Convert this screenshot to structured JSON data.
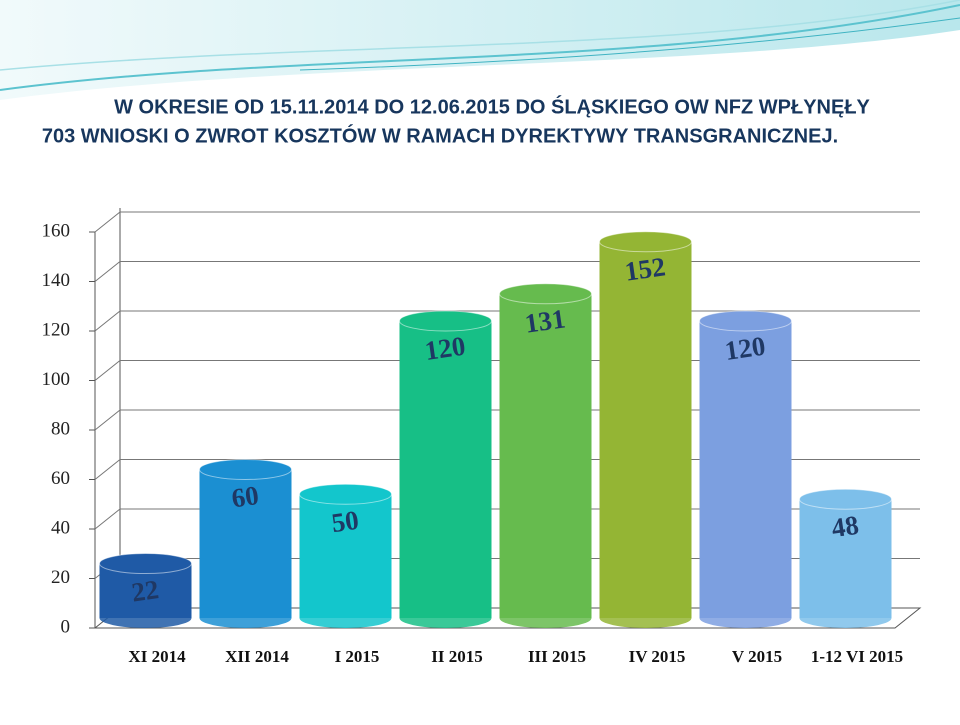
{
  "chart_data": {
    "type": "bar",
    "title_lines": [
      "W OKRESIE OD 15.11.2014 DO 12.06.2015 DO ŚLĄSKIEGO OW NFZ WPŁYNĘŁY",
      "703 WNIOSKI O ZWROT KOSZTÓW W RAMACH DYREKTYWY TRANSGRANICZNEJ."
    ],
    "categories": [
      "XI  2014",
      "XII  2014",
      "I  2015",
      "II 2015",
      "III 2015",
      "IV 2015",
      "V 2015",
      "1-12 VI 2015"
    ],
    "values": [
      22,
      60,
      50,
      120,
      131,
      152,
      120,
      48
    ],
    "colors": [
      "#1f5aa6",
      "#1b8fd2",
      "#13c6cc",
      "#17bf86",
      "#66bb4e",
      "#94b534",
      "#7c9fe0",
      "#7dbfea"
    ],
    "ylim": [
      0,
      160
    ],
    "yticks": [
      0,
      20,
      40,
      60,
      80,
      100,
      120,
      140,
      160
    ],
    "grid": true
  }
}
